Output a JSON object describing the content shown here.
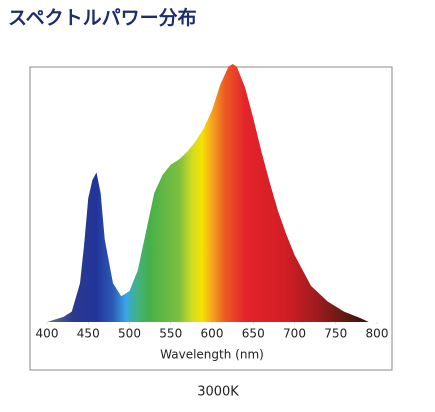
{
  "chart_data": {
    "type": "area",
    "title": "スペクトルパワー分布",
    "x_label": "Wavelength (nm)",
    "caption": "3000K",
    "x": [
      400,
      420,
      430,
      440,
      445,
      450,
      455,
      460,
      465,
      470,
      480,
      490,
      500,
      510,
      520,
      530,
      540,
      550,
      560,
      570,
      580,
      590,
      600,
      610,
      620,
      625,
      630,
      640,
      650,
      660,
      670,
      680,
      690,
      700,
      720,
      740,
      760,
      780,
      790
    ],
    "values": [
      0.0,
      0.02,
      0.04,
      0.15,
      0.3,
      0.48,
      0.55,
      0.58,
      0.5,
      0.32,
      0.15,
      0.1,
      0.12,
      0.2,
      0.35,
      0.5,
      0.57,
      0.61,
      0.63,
      0.66,
      0.7,
      0.75,
      0.82,
      0.92,
      0.99,
      1.0,
      0.99,
      0.91,
      0.79,
      0.66,
      0.54,
      0.43,
      0.34,
      0.26,
      0.14,
      0.08,
      0.04,
      0.015,
      0.0
    ],
    "xlim": [
      400,
      800
    ],
    "ylim": [
      0,
      1
    ],
    "xticks": [
      400,
      450,
      500,
      550,
      600,
      650,
      700,
      750,
      800
    ]
  }
}
